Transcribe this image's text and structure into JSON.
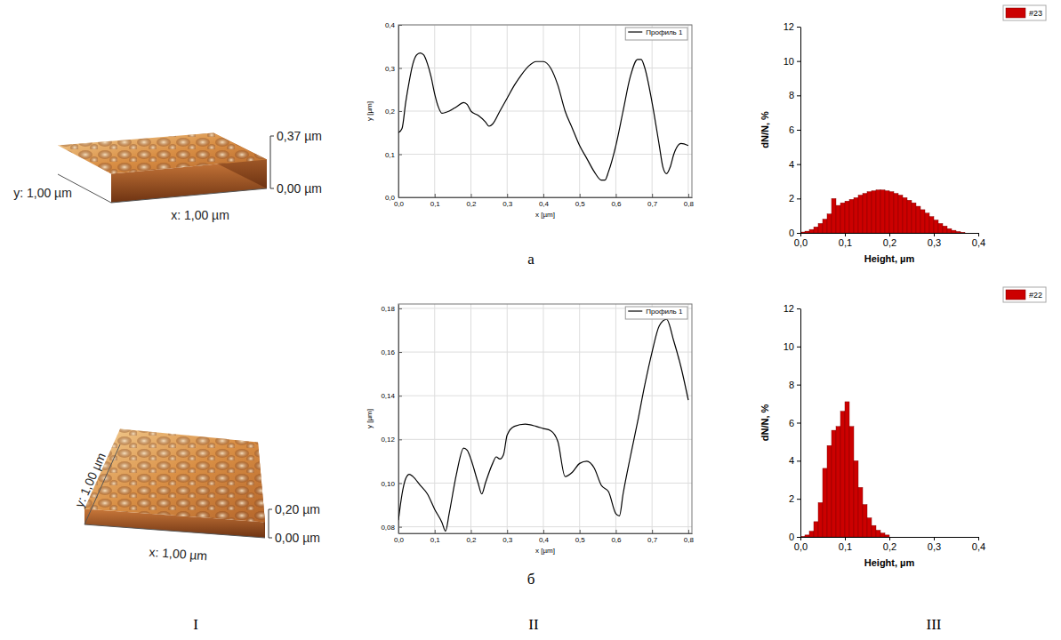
{
  "chart_data": [
    {
      "type": "surface",
      "x_label": "x: 1,00 µm",
      "y_label": "y: 1,00 µm",
      "zlim": [
        0,
        0.37
      ],
      "zticks": [
        {
          "value": 0,
          "label": "0,00 µm"
        },
        {
          "value": 0.37,
          "label": "0,37 µm"
        }
      ]
    },
    {
      "type": "line",
      "x_label": "x [µm]",
      "y_label": "y [µm]",
      "grid": true,
      "legend": "top-right",
      "xlim": [
        0,
        0.81
      ],
      "ylim": [
        0,
        0.4
      ],
      "xticks": [
        {
          "value": 0,
          "label": "0,0"
        },
        {
          "value": 0.1,
          "label": "0,1"
        },
        {
          "value": 0.2,
          "label": "0,2"
        },
        {
          "value": 0.3,
          "label": "0,3"
        },
        {
          "value": 0.4,
          "label": "0,4"
        },
        {
          "value": 0.5,
          "label": "0,5"
        },
        {
          "value": 0.6,
          "label": "0,6"
        },
        {
          "value": 0.7,
          "label": "0,7"
        },
        {
          "value": 0.8,
          "label": "0,8"
        }
      ],
      "yticks": [
        {
          "value": 0,
          "label": "0,0"
        },
        {
          "value": 0.1,
          "label": "0,1"
        },
        {
          "value": 0.2,
          "label": "0,2"
        },
        {
          "value": 0.3,
          "label": "0,3"
        },
        {
          "value": 0.4,
          "label": "0,4"
        }
      ],
      "x": [
        0,
        0.01,
        0.02,
        0.03,
        0.04,
        0.05,
        0.06,
        0.07,
        0.08,
        0.09,
        0.1,
        0.11,
        0.12,
        0.14,
        0.16,
        0.18,
        0.19,
        0.2,
        0.22,
        0.24,
        0.25,
        0.26,
        0.28,
        0.3,
        0.32,
        0.34,
        0.36,
        0.38,
        0.4,
        0.42,
        0.44,
        0.46,
        0.48,
        0.5,
        0.52,
        0.54,
        0.56,
        0.57,
        0.58,
        0.6,
        0.62,
        0.64,
        0.66,
        0.67,
        0.68,
        0.7,
        0.72,
        0.73,
        0.74,
        0.75,
        0.76,
        0.78,
        0.8
      ],
      "series": [
        {
          "name": "Профиль 1",
          "color": "#000000",
          "values": [
            0.15,
            0.16,
            0.22,
            0.27,
            0.31,
            0.33,
            0.335,
            0.33,
            0.31,
            0.28,
            0.24,
            0.21,
            0.195,
            0.2,
            0.21,
            0.22,
            0.215,
            0.2,
            0.19,
            0.175,
            0.165,
            0.17,
            0.2,
            0.23,
            0.26,
            0.285,
            0.305,
            0.315,
            0.315,
            0.3,
            0.26,
            0.2,
            0.16,
            0.12,
            0.09,
            0.06,
            0.04,
            0.04,
            0.06,
            0.12,
            0.2,
            0.28,
            0.32,
            0.32,
            0.3,
            0.22,
            0.12,
            0.07,
            0.055,
            0.07,
            0.1,
            0.125,
            0.12
          ]
        }
      ]
    },
    {
      "type": "histogram",
      "x_label": "Height, µm",
      "y_label": "dN/N, %",
      "grid": false,
      "legend": "top-right",
      "xlim": [
        0,
        0.4
      ],
      "ylim": [
        0,
        12
      ],
      "xticks": [
        {
          "value": 0,
          "label": "0,0"
        },
        {
          "value": 0.1,
          "label": "0,1"
        },
        {
          "value": 0.2,
          "label": "0,2"
        },
        {
          "value": 0.3,
          "label": "0,3"
        },
        {
          "value": 0.4,
          "label": "0,4"
        }
      ],
      "yticks": [
        0,
        2,
        4,
        6,
        8,
        10,
        12
      ],
      "bins": [
        0,
        0.01,
        0.02,
        0.03,
        0.04,
        0.05,
        0.06,
        0.07,
        0.08,
        0.09,
        0.1,
        0.11,
        0.12,
        0.13,
        0.14,
        0.15,
        0.16,
        0.17,
        0.18,
        0.19,
        0.2,
        0.21,
        0.22,
        0.23,
        0.24,
        0.25,
        0.26,
        0.27,
        0.28,
        0.29,
        0.3,
        0.31,
        0.32,
        0.33,
        0.34,
        0.35,
        0.36,
        0.37
      ],
      "series": [
        {
          "name": "#23",
          "color": "#cc0000",
          "values": [
            0.05,
            0.1,
            0.2,
            0.35,
            0.55,
            0.8,
            1.1,
            2.0,
            1.6,
            1.75,
            1.85,
            1.95,
            2.05,
            2.2,
            2.3,
            2.4,
            2.45,
            2.5,
            2.5,
            2.45,
            2.4,
            2.3,
            2.2,
            2.05,
            1.9,
            1.75,
            1.55,
            1.35,
            1.15,
            0.95,
            0.75,
            0.55,
            0.4,
            0.25,
            0.15,
            0.08,
            0.03
          ]
        }
      ]
    },
    {
      "type": "surface",
      "x_label": "x: 1,00 µm",
      "y_label": "y: 1,00 µm",
      "zlim": [
        0,
        0.2
      ],
      "zticks": [
        {
          "value": 0,
          "label": "0,00 µm"
        },
        {
          "value": 0.2,
          "label": "0,20 µm"
        }
      ]
    },
    {
      "type": "line",
      "x_label": "x [µm]",
      "y_label": "y [µm]",
      "grid": true,
      "legend": "top-right",
      "xlim": [
        0,
        0.81
      ],
      "ylim": [
        0.077,
        0.182
      ],
      "xticks": [
        {
          "value": 0,
          "label": "0,0"
        },
        {
          "value": 0.1,
          "label": "0,1"
        },
        {
          "value": 0.2,
          "label": "0,2"
        },
        {
          "value": 0.3,
          "label": "0,3"
        },
        {
          "value": 0.4,
          "label": "0,4"
        },
        {
          "value": 0.5,
          "label": "0,5"
        },
        {
          "value": 0.6,
          "label": "0,6"
        },
        {
          "value": 0.7,
          "label": "0,7"
        },
        {
          "value": 0.8,
          "label": "0,8"
        }
      ],
      "yticks": [
        {
          "value": 0.08,
          "label": "0,08"
        },
        {
          "value": 0.1,
          "label": "0,10"
        },
        {
          "value": 0.12,
          "label": "0,12"
        },
        {
          "value": 0.14,
          "label": "0,14"
        },
        {
          "value": 0.16,
          "label": "0,16"
        },
        {
          "value": 0.18,
          "label": "0,18"
        }
      ],
      "x": [
        0,
        0.01,
        0.02,
        0.03,
        0.04,
        0.06,
        0.08,
        0.1,
        0.12,
        0.13,
        0.14,
        0.16,
        0.18,
        0.19,
        0.2,
        0.22,
        0.23,
        0.24,
        0.26,
        0.27,
        0.28,
        0.29,
        0.3,
        0.32,
        0.35,
        0.38,
        0.4,
        0.42,
        0.44,
        0.46,
        0.48,
        0.5,
        0.52,
        0.54,
        0.56,
        0.58,
        0.6,
        0.61,
        0.62,
        0.64,
        0.66,
        0.68,
        0.7,
        0.72,
        0.74,
        0.76,
        0.78,
        0.8
      ],
      "series": [
        {
          "name": "Профиль 1",
          "color": "#000000",
          "values": [
            0.083,
            0.095,
            0.102,
            0.104,
            0.103,
            0.099,
            0.095,
            0.088,
            0.082,
            0.078,
            0.086,
            0.104,
            0.116,
            0.115,
            0.111,
            0.1,
            0.095,
            0.1,
            0.109,
            0.112,
            0.111,
            0.113,
            0.122,
            0.126,
            0.127,
            0.126,
            0.125,
            0.124,
            0.119,
            0.103,
            0.105,
            0.109,
            0.11,
            0.107,
            0.099,
            0.096,
            0.086,
            0.085,
            0.095,
            0.112,
            0.128,
            0.145,
            0.16,
            0.172,
            0.175,
            0.165,
            0.153,
            0.138
          ]
        }
      ]
    },
    {
      "type": "histogram",
      "x_label": "Height, µm",
      "y_label": "dN/N, %",
      "grid": false,
      "legend": "top-right",
      "xlim": [
        0,
        0.4
      ],
      "ylim": [
        0,
        12
      ],
      "xticks": [
        {
          "value": 0,
          "label": "0,0"
        },
        {
          "value": 0.1,
          "label": "0,1"
        },
        {
          "value": 0.2,
          "label": "0,2"
        },
        {
          "value": 0.3,
          "label": "0,3"
        },
        {
          "value": 0.4,
          "label": "0,4"
        }
      ],
      "yticks": [
        0,
        2,
        4,
        6,
        8,
        10,
        12
      ],
      "bins": [
        0,
        0.01,
        0.02,
        0.03,
        0.04,
        0.05,
        0.06,
        0.07,
        0.08,
        0.09,
        0.1,
        0.11,
        0.12,
        0.13,
        0.14,
        0.15,
        0.16,
        0.17,
        0.18,
        0.19,
        0.2
      ],
      "series": [
        {
          "name": "#22",
          "color": "#cc0000",
          "values": [
            0.02,
            0.1,
            0.3,
            0.8,
            1.8,
            3.6,
            4.8,
            5.6,
            5.8,
            6.6,
            7.1,
            5.8,
            4.0,
            2.6,
            1.7,
            1.0,
            0.6,
            0.35,
            0.2,
            0.1
          ]
        }
      ]
    }
  ],
  "row_labels": [
    "a",
    "б"
  ],
  "column_labels": [
    "I",
    "II",
    "III"
  ]
}
